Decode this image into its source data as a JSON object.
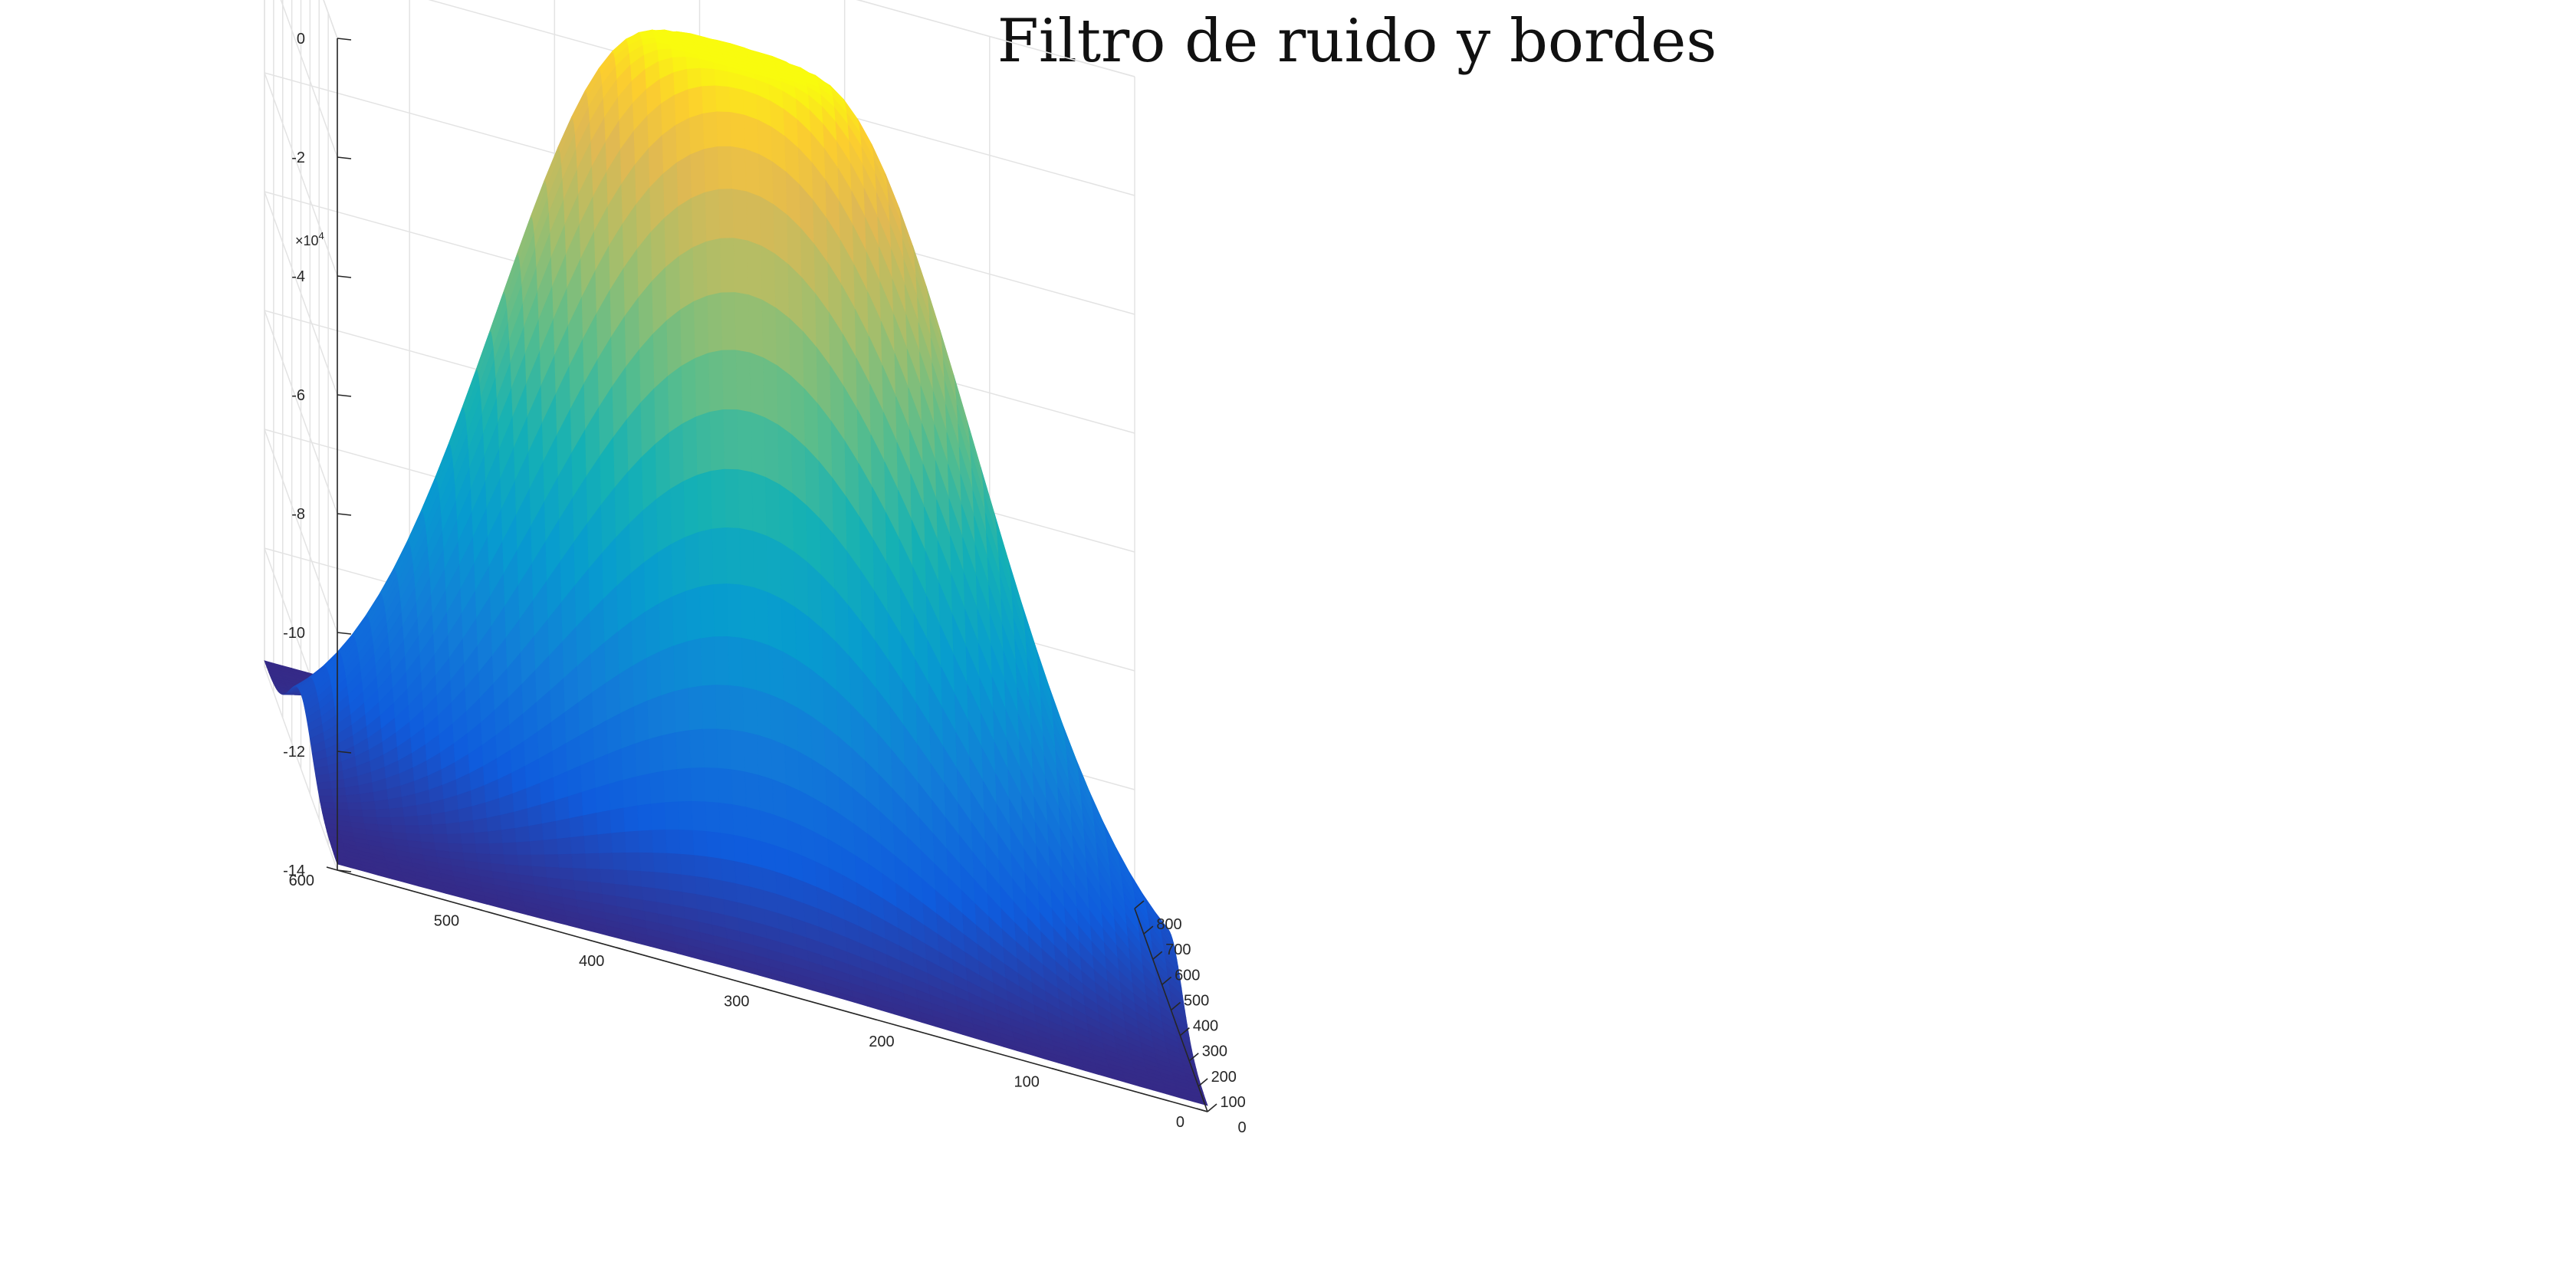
{
  "chart_data": {
    "type": "surface",
    "title": "Filtro de ruido y bordes",
    "xlabel": "",
    "ylabel": "",
    "zlabel": "",
    "xlim": [
      0,
      800
    ],
    "ylim": [
      0,
      600
    ],
    "zlim": [
      -140000,
      0
    ],
    "x_ticks": [
      0,
      100,
      200,
      300,
      400,
      500,
      600,
      700,
      800
    ],
    "y_ticks": [
      0,
      100,
      200,
      300,
      400,
      500,
      600
    ],
    "z_ticks": [
      0,
      -2,
      -4,
      -6,
      -8,
      -10,
      -12,
      -14
    ],
    "z_exponent_label": "×10",
    "z_exponent_power": "4",
    "grid": true,
    "colormap": "parula",
    "surface": {
      "description": "Gaussian-shaped bump centred in the domain",
      "center_x": 400,
      "center_y": 300,
      "peak_z": 0,
      "floor_z": -139000,
      "plateau_radius": 55,
      "sigma": 110
    }
  }
}
